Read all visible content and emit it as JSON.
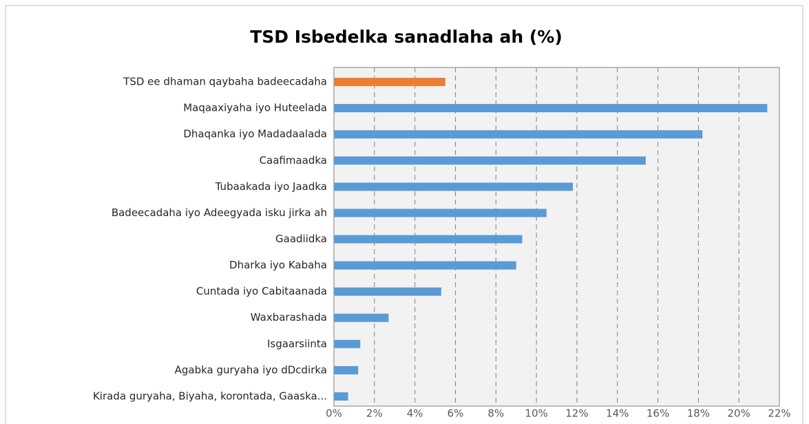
{
  "chart_data": {
    "type": "barh",
    "title": "TSD Isbedelka sanadlaha ah (%)",
    "categories": [
      "TSD ee dhaman qaybaha badeecadaha",
      "Maqaaxiyaha iyo Huteelada",
      "Dhaqanka iyo Madadaalada",
      "Caafimaadka",
      "Tubaakada iyo Jaadka",
      "Badeecadaha iyo Adeegyada isku jirka ah",
      "Gaadiidka",
      "Dharka iyo Kabaha",
      "Cuntada iyo Cabitaanada",
      "Waxbarashada",
      "Isgaarsiinta",
      "Agabka guryaha iyo dDcdirka",
      "Kirada guryaha, Biyaha, korontada, Gaaska..."
    ],
    "values": [
      5.5,
      21.4,
      18.2,
      15.4,
      11.8,
      10.5,
      9.3,
      9.0,
      5.3,
      2.7,
      1.3,
      1.2,
      0.7
    ],
    "colors": [
      "#ed7d31",
      "#5b9bd5",
      "#5b9bd5",
      "#5b9bd5",
      "#5b9bd5",
      "#5b9bd5",
      "#5b9bd5",
      "#5b9bd5",
      "#5b9bd5",
      "#5b9bd5",
      "#5b9bd5",
      "#5b9bd5",
      "#5b9bd5"
    ],
    "xlim": [
      0,
      22
    ],
    "xticks": [
      {
        "value": 0,
        "label": "0%"
      },
      {
        "value": 2,
        "label": "2%"
      },
      {
        "value": 4,
        "label": "4%"
      },
      {
        "value": 6,
        "label": "6%"
      },
      {
        "value": 8,
        "label": "8%"
      },
      {
        "value": 10,
        "label": "10%"
      },
      {
        "value": 12,
        "label": "12%"
      },
      {
        "value": 14,
        "label": "14%"
      },
      {
        "value": 16,
        "label": "16%"
      },
      {
        "value": 18,
        "label": "18%"
      },
      {
        "value": 20,
        "label": "20%"
      },
      {
        "value": 22,
        "label": "22%"
      }
    ],
    "grid": true
  }
}
